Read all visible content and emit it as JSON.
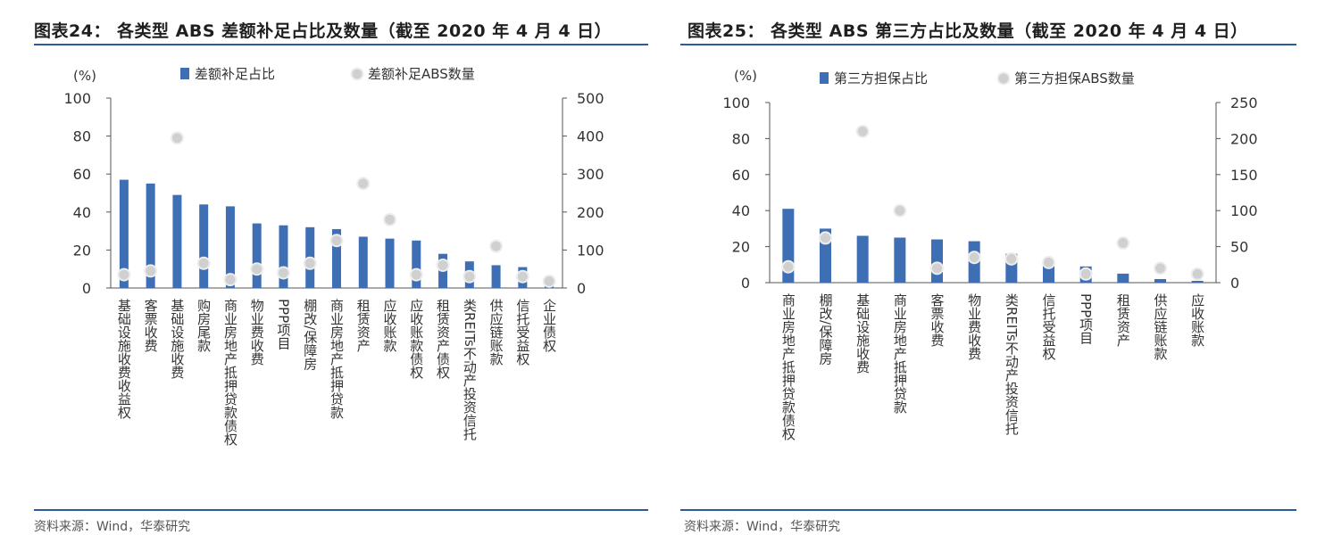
{
  "colors": {
    "bar": "#3e6fb5",
    "dot_fill": "#d0d0d0",
    "dot_stroke": "#ededed",
    "axis": "#555555",
    "rule": "#2a5b9a"
  },
  "charts": [
    {
      "figure_title": "图表24： 各类型 ABS 差额补足占比及数量（截至 2020 年 4 月 4 日）",
      "source": "资料来源：Wind，华泰研究",
      "chart_data": {
        "type": "bar",
        "categories": [
          "基础设施收费收益权",
          "客票收费",
          "基础设施收费",
          "购房尾款",
          "商业房地产抵押贷款债权",
          "物业费收费",
          "PPP项目",
          "棚改/保障房",
          "商业房地产抵押贷款",
          "租赁资产",
          "应收账款",
          "应收账款债权",
          "租赁资产债权",
          "类REITs不动产投资信托",
          "供应链账款",
          "信托受益权",
          "企业债权"
        ],
        "series": [
          {
            "name": "差额补足占比",
            "kind": "bar",
            "axis": "left",
            "values": [
              57,
              55,
              49,
              44,
              43,
              34,
              33,
              32,
              31,
              27,
              26,
              25,
              18,
              14,
              12,
              11,
              4
            ]
          },
          {
            "name": "差额补足ABS数量",
            "kind": "scatter",
            "axis": "right",
            "values": [
              35,
              45,
              395,
              65,
              22,
              50,
              40,
              65,
              125,
              275,
              180,
              35,
              60,
              30,
              110,
              30,
              18
            ]
          }
        ],
        "y_left": {
          "unit": "(%)",
          "range": [
            0,
            100
          ],
          "ticks": [
            0,
            20,
            40,
            60,
            80,
            100
          ]
        },
        "y_right": {
          "range": [
            0,
            500
          ],
          "ticks": [
            0,
            100,
            200,
            300,
            400,
            500
          ]
        },
        "legend_position": "top"
      }
    },
    {
      "figure_title": "图表25： 各类型 ABS 第三方占比及数量（截至 2020 年 4 月 4 日）",
      "source": "资料来源：Wind，华泰研究",
      "chart_data": {
        "type": "bar",
        "categories": [
          "商业房地产抵押贷款债权",
          "棚改/保障房",
          "基础设施收费",
          "商业房地产抵押贷款",
          "客票收费",
          "物业费收费",
          "类REITs不动产投资信托",
          "信托受益权",
          "PPP项目",
          "租赁资产",
          "供应链账款",
          "应收账款"
        ],
        "series": [
          {
            "name": "第三方担保占比",
            "kind": "bar",
            "axis": "left",
            "values": [
              41,
              30,
              26,
              25,
              24,
              23,
              16,
              11,
              9,
              5,
              2,
              1
            ]
          },
          {
            "name": "第三方担保ABS数量",
            "kind": "scatter",
            "axis": "right",
            "values": [
              22,
              62,
              210,
              100,
              20,
              35,
              33,
              28,
              12,
              55,
              20,
              12
            ]
          }
        ],
        "y_left": {
          "unit": "(%)",
          "range": [
            0,
            100
          ],
          "ticks": [
            0,
            20,
            40,
            60,
            80,
            100
          ]
        },
        "y_right": {
          "range": [
            0,
            250
          ],
          "ticks": [
            0,
            50,
            100,
            150,
            200,
            250
          ]
        },
        "legend_position": "top"
      }
    }
  ]
}
